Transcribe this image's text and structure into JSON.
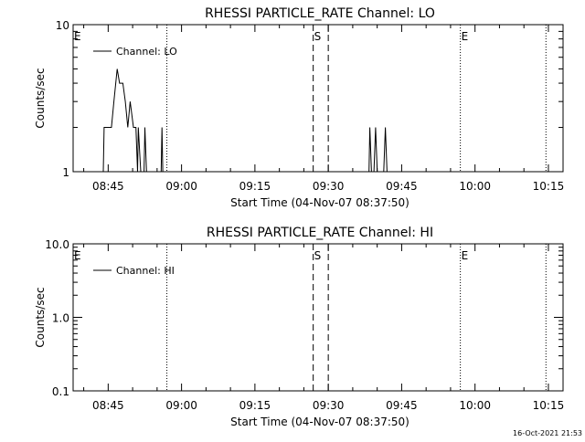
{
  "footer": {
    "date_stamp": "16-Oct-2021 21:53"
  },
  "chart_data": [
    {
      "type": "line",
      "title": "RHESSI PARTICLE_RATE Channel: LO",
      "xlabel": "Start Time (04-Nov-07 08:37:50)",
      "ylabel": "Counts/sec",
      "y_scale": "log",
      "ylim": [
        1,
        10
      ],
      "y_tick_labels": [
        "1",
        "10"
      ],
      "xlim": [
        "08:37:50",
        "10:18:00"
      ],
      "x_tick_labels": [
        "08:45",
        "09:00",
        "09:15",
        "09:30",
        "09:45",
        "10:00",
        "10:15"
      ],
      "legend": {
        "position": "top-left",
        "entries": [
          "Channel: LO"
        ]
      },
      "markers": [
        {
          "time": "08:37:50",
          "label": "E",
          "style": "dotted"
        },
        {
          "time": "08:57:00",
          "label": "",
          "style": "dotted"
        },
        {
          "time": "09:26:55",
          "label": "S",
          "style": "dashed"
        },
        {
          "time": "09:30:00",
          "label": "",
          "style": "dashed"
        },
        {
          "time": "09:57:00",
          "label": "E",
          "style": "dotted"
        },
        {
          "time": "10:14:30",
          "label": "",
          "style": "dotted"
        }
      ],
      "series": [
        {
          "values": [
            [
              "08:44:00",
              1
            ],
            [
              "08:44:10",
              2
            ],
            [
              "08:45:40",
              2
            ],
            [
              "08:46:10",
              3
            ],
            [
              "08:46:50",
              5
            ],
            [
              "08:47:20",
              4
            ],
            [
              "08:48:00",
              4
            ],
            [
              "08:48:30",
              3
            ],
            [
              "08:49:00",
              2
            ],
            [
              "08:49:30",
              3
            ],
            [
              "08:50:10",
              2
            ],
            [
              "08:50:40",
              2
            ],
            [
              "08:51:00",
              1
            ],
            [
              "08:51:10",
              2
            ],
            [
              "08:51:40",
              1
            ],
            [
              "08:52:20",
              1
            ],
            [
              "08:52:30",
              2
            ],
            [
              "08:52:50",
              1
            ],
            [
              "08:55:50",
              1
            ],
            [
              "08:56:00",
              2
            ],
            [
              "08:56:10",
              1
            ],
            [
              "09:38:20",
              1
            ],
            [
              "09:38:30",
              2
            ],
            [
              "09:38:50",
              1
            ],
            [
              "09:39:20",
              1
            ],
            [
              "09:39:40",
              2
            ],
            [
              "09:40:00",
              1
            ],
            [
              "09:41:20",
              1
            ],
            [
              "09:41:40",
              2
            ],
            [
              "09:42:00",
              1
            ]
          ]
        }
      ]
    },
    {
      "type": "line",
      "title": "RHESSI PARTICLE_RATE Channel: HI",
      "xlabel": "Start Time (04-Nov-07 08:37:50)",
      "ylabel": "Counts/sec",
      "y_scale": "log",
      "ylim": [
        0.1,
        10
      ],
      "y_tick_labels": [
        "0.1",
        "1.0",
        "10.0"
      ],
      "xlim": [
        "08:37:50",
        "10:18:00"
      ],
      "x_tick_labels": [
        "08:45",
        "09:00",
        "09:15",
        "09:30",
        "09:45",
        "10:00",
        "10:15"
      ],
      "legend": {
        "position": "top-left",
        "entries": [
          "Channel: HI"
        ]
      },
      "markers": [
        {
          "time": "08:37:50",
          "label": "E",
          "style": "dotted"
        },
        {
          "time": "08:57:00",
          "label": "",
          "style": "dotted"
        },
        {
          "time": "09:26:55",
          "label": "S",
          "style": "dashed"
        },
        {
          "time": "09:30:00",
          "label": "",
          "style": "dashed"
        },
        {
          "time": "09:57:00",
          "label": "E",
          "style": "dotted"
        },
        {
          "time": "10:14:30",
          "label": "",
          "style": "dotted"
        }
      ],
      "series": [
        {
          "values": []
        }
      ]
    }
  ]
}
